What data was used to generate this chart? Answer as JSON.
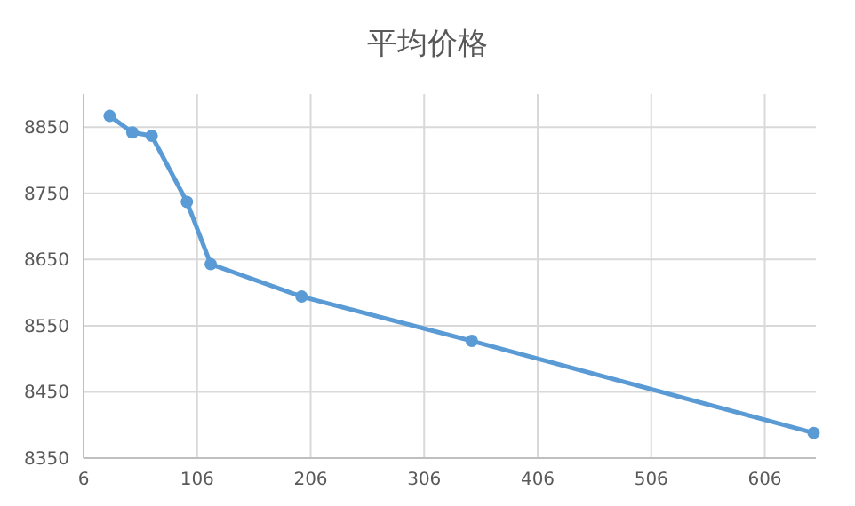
{
  "chart_data": {
    "type": "line",
    "title": "平均价格",
    "x": [
      29,
      49,
      66,
      97,
      118,
      198,
      348,
      649
    ],
    "series": [
      {
        "color": "#5b9bd5",
        "values": [
          8867,
          8842,
          8837,
          8737,
          8643,
          8594,
          8527,
          8388
        ]
      }
    ],
    "xlim": [
      6,
      651
    ],
    "xticks": [
      6,
      106,
      206,
      306,
      406,
      506,
      606
    ],
    "ylim": [
      8350,
      8900
    ],
    "yticks": [
      8350,
      8450,
      8550,
      8650,
      8750,
      8850
    ],
    "grid": true,
    "marker": "circle",
    "line_style": "solid"
  }
}
